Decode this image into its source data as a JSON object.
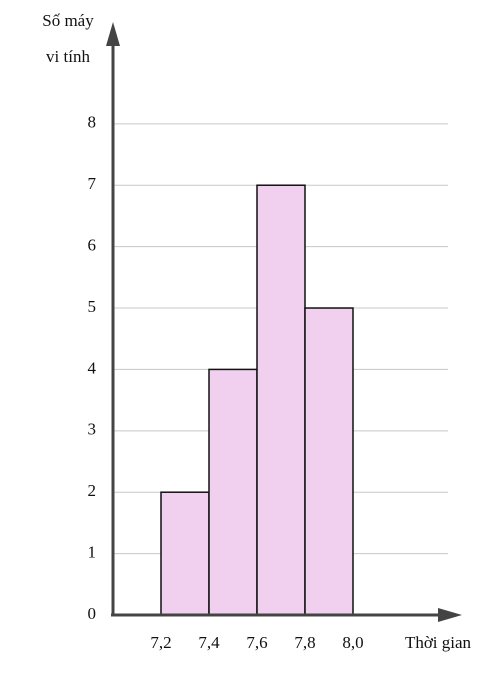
{
  "chart_data": {
    "type": "histogram",
    "ylabel": [
      "Số máy",
      "vi tính"
    ],
    "xlabel": "Thời gian",
    "bins": [
      7.2,
      7.4,
      7.6,
      7.8,
      8.0
    ],
    "values": [
      2,
      4,
      7,
      5
    ],
    "color": "#f0d0ee",
    "xlim": [
      7.0,
      8.45
    ],
    "xticks": [
      {
        "value": 7.2,
        "label": "7,2"
      },
      {
        "value": 7.4,
        "label": "7,4"
      },
      {
        "value": 7.6,
        "label": "7,6"
      },
      {
        "value": 7.8,
        "label": "7,8"
      },
      {
        "value": 8.0,
        "label": "8,0"
      }
    ],
    "ylim": [
      0,
      9.6
    ],
    "yticks": [
      0,
      1,
      2,
      3,
      4,
      5,
      6,
      7,
      8
    ],
    "grid": true
  }
}
